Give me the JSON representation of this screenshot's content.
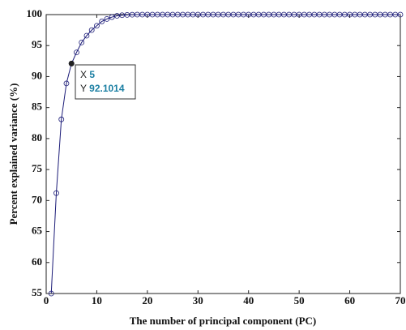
{
  "chart_data": {
    "type": "line",
    "xlabel": "The number of principal component (PC)",
    "ylabel": "Percent explained variance (%)",
    "series": [
      {
        "color": "#1c1c78",
        "x": [
          1,
          2,
          3,
          4,
          5,
          6,
          7,
          8,
          9,
          10,
          11,
          12,
          13,
          14,
          15,
          16,
          17,
          18,
          19,
          20,
          21,
          22,
          23,
          24,
          25,
          26,
          27,
          28,
          29,
          30,
          31,
          32,
          33,
          34,
          35,
          36,
          37,
          38,
          39,
          40,
          41,
          42,
          43,
          44,
          45,
          46,
          47,
          48,
          49,
          50,
          51,
          52,
          53,
          54,
          55,
          56,
          57,
          58,
          59,
          60,
          61,
          62,
          63,
          64,
          65,
          66,
          67,
          68,
          69,
          70
        ],
        "values": [
          55,
          71.2,
          83.1,
          88.9,
          92.1014,
          93.9,
          95.5,
          96.6,
          97.5,
          98.2,
          98.9,
          99.3,
          99.6,
          99.8,
          99.9,
          99.95,
          99.98,
          100,
          100,
          100,
          100,
          100,
          100,
          100,
          100,
          100,
          100,
          100,
          100,
          100,
          100,
          100,
          100,
          100,
          100,
          100,
          100,
          100,
          100,
          100,
          100,
          100,
          100,
          100,
          100,
          100,
          100,
          100,
          100,
          100,
          100,
          100,
          100,
          100,
          100,
          100,
          100,
          100,
          100,
          100,
          100,
          100,
          100,
          100,
          100,
          100,
          100,
          100,
          100,
          100
        ]
      }
    ],
    "xlim": [
      0,
      70
    ],
    "xticks": [
      0,
      10,
      20,
      30,
      40,
      50,
      60,
      70
    ],
    "ylim": [
      55,
      100
    ],
    "yticks": [
      55,
      60,
      65,
      70,
      75,
      80,
      85,
      90,
      95,
      100
    ],
    "datatip": {
      "x_label": "X",
      "x": 5,
      "y_label": "Y",
      "y": 92.1014
    }
  }
}
